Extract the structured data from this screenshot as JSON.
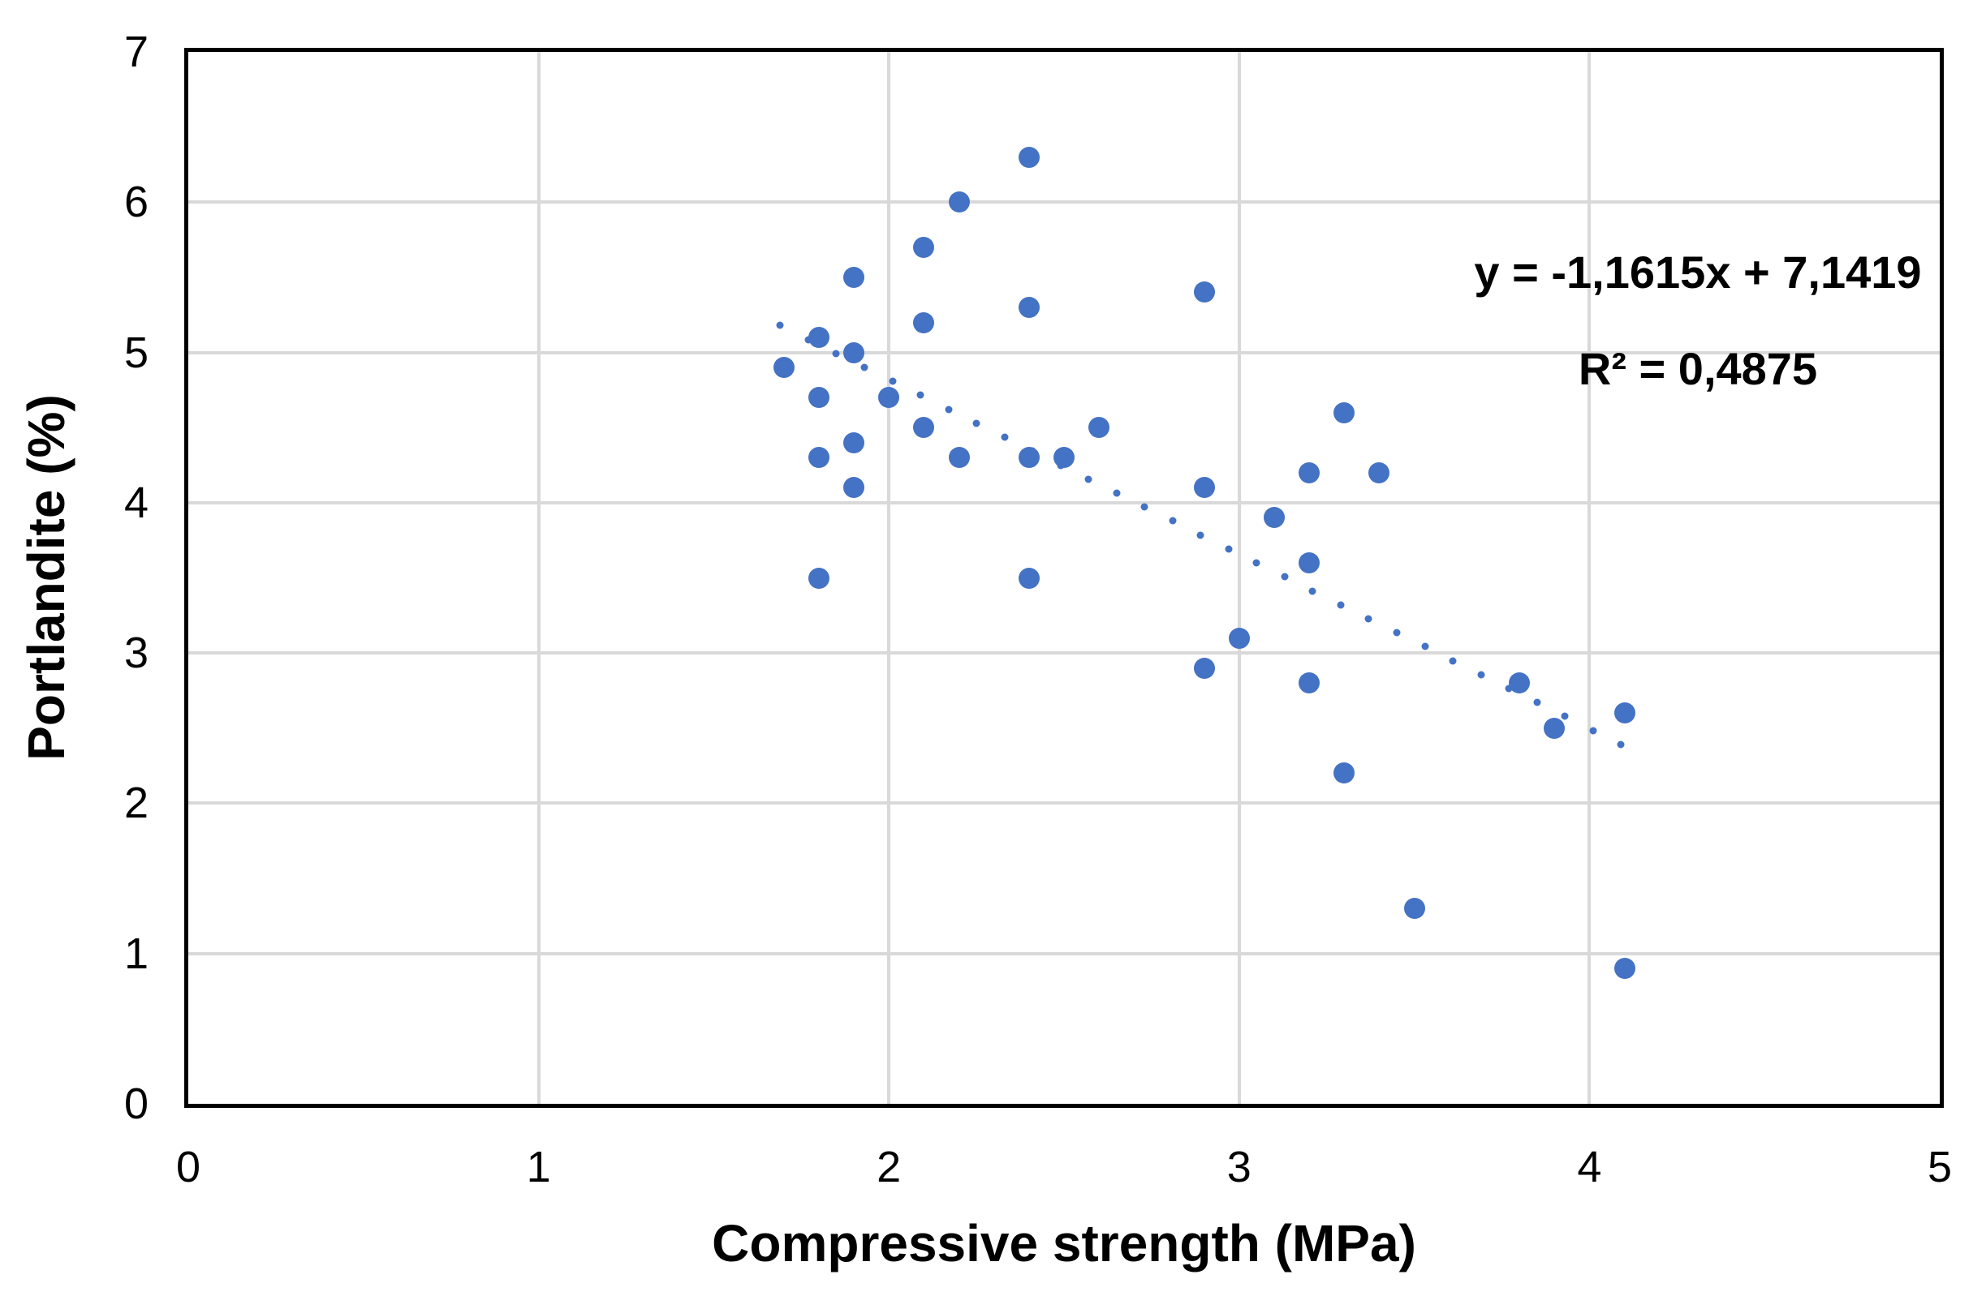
{
  "chart_data": {
    "type": "scatter",
    "title": "",
    "xlabel": "Compressive strength (MPa)",
    "ylabel": "Portlandite (%)",
    "xlim": [
      0,
      5
    ],
    "ylim": [
      0,
      7
    ],
    "xticks": [
      "0",
      "1",
      "2",
      "3",
      "4",
      "5"
    ],
    "yticks": [
      "0",
      "1",
      "2",
      "3",
      "4",
      "5",
      "6",
      "7"
    ],
    "grid": true,
    "legend": false,
    "marker_color": "#4472C4",
    "gridline_color": "#D9D9D9",
    "axis_color": "#000000",
    "points": [
      [
        1.7,
        4.9
      ],
      [
        1.8,
        5.1
      ],
      [
        1.8,
        4.7
      ],
      [
        1.8,
        4.3
      ],
      [
        1.8,
        3.5
      ],
      [
        1.9,
        5.5
      ],
      [
        1.9,
        5.0
      ],
      [
        1.9,
        4.4
      ],
      [
        1.9,
        4.1
      ],
      [
        2.0,
        4.7
      ],
      [
        2.1,
        5.7
      ],
      [
        2.1,
        5.2
      ],
      [
        2.1,
        4.5
      ],
      [
        2.2,
        6.0
      ],
      [
        2.2,
        4.3
      ],
      [
        2.4,
        6.3
      ],
      [
        2.4,
        5.3
      ],
      [
        2.4,
        4.3
      ],
      [
        2.4,
        3.5
      ],
      [
        2.5,
        4.3
      ],
      [
        2.6,
        4.5
      ],
      [
        2.9,
        5.4
      ],
      [
        2.9,
        4.1
      ],
      [
        2.9,
        2.9
      ],
      [
        3.0,
        3.1
      ],
      [
        3.1,
        3.9
      ],
      [
        3.2,
        4.2
      ],
      [
        3.2,
        3.6
      ],
      [
        3.2,
        2.8
      ],
      [
        3.3,
        4.6
      ],
      [
        3.3,
        2.2
      ],
      [
        3.4,
        4.2
      ],
      [
        3.5,
        1.3
      ],
      [
        3.8,
        2.8
      ],
      [
        3.9,
        2.5
      ],
      [
        4.1,
        2.6
      ],
      [
        4.1,
        0.9
      ]
    ],
    "trendline": {
      "equation_label": "y = -1,1615x + 7,1419",
      "r2_label": "R² = 0,4875",
      "slope": -1.1615,
      "intercept": 7.1419,
      "x_start": 1.69,
      "x_end": 4.09,
      "style": "dotted"
    }
  }
}
